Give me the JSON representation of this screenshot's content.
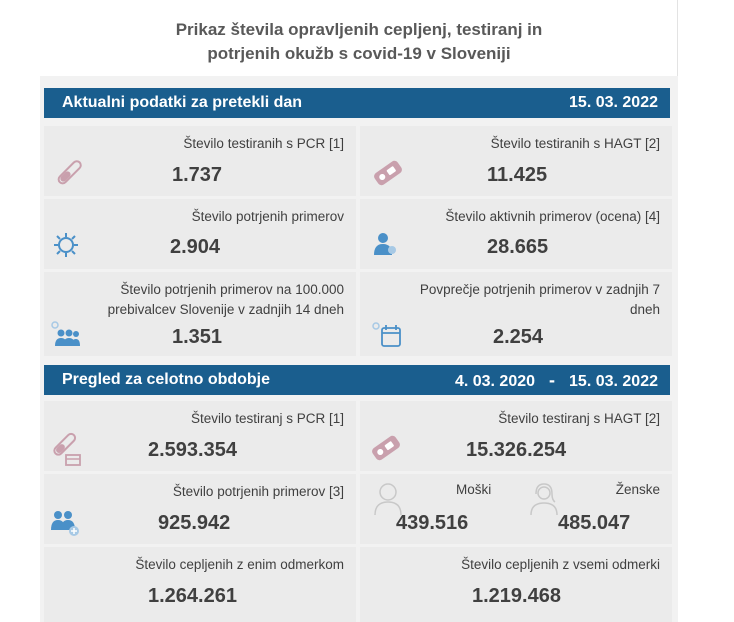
{
  "title_line1": "Prikaz števila opravljenih cepljenj, testiranj in",
  "title_line2": "potrjenih okužb s covid-19 v Sloveniji",
  "daily": {
    "header": "Aktualni podatki za pretekli dan",
    "date": "15. 03. 2022",
    "cards": {
      "pcr": {
        "label": "Število testiranih s PCR [1]",
        "value": "1.737"
      },
      "hagt": {
        "label": "Število testiranih s HAGT [2]",
        "value": "11.425"
      },
      "confirmed": {
        "label": "Število potrjenih primerov",
        "value": "2.904"
      },
      "active": {
        "label": "Število aktivnih primerov (ocena) [4]",
        "value": "28.665"
      },
      "per100k_line1": "Število potrjenih primerov na 100.000",
      "per100k_line2": "prebivalcev Slovenije v zadnjih 14 dneh",
      "per100k_value": "1.351",
      "avg7_line1": "Povprečje potrjenih primerov v zadnjih 7",
      "avg7_line2": "dneh",
      "avg7_value": "2.254"
    }
  },
  "total": {
    "header": "Pregled za celotno obdobje",
    "date_from": "4. 03. 2020",
    "dash": "-",
    "date_to": "15. 03. 2022",
    "cards": {
      "pcr": {
        "label": "Število testiranj s PCR [1]",
        "value": "2.593.354"
      },
      "hagt": {
        "label": "Število testiranj s HAGT [2]",
        "value": "15.326.254"
      },
      "confirmed": {
        "label": "Število potrjenih primerov [3]",
        "value": "925.942"
      },
      "male": {
        "label": "Moški",
        "value": "439.516"
      },
      "female": {
        "label": "Ženske",
        "value": "485.047"
      },
      "vacc1": {
        "label": "Število cepljenih z enim odmerkom",
        "value": "1.264.261"
      },
      "vaccall": {
        "label": "Število cepljenih z vsemi odmerki",
        "value": "1.219.468"
      }
    }
  },
  "colors": {
    "header_bg": "#1a5e8e",
    "icon_pink": "#c9a0ad",
    "icon_blue": "#4a90c8"
  }
}
